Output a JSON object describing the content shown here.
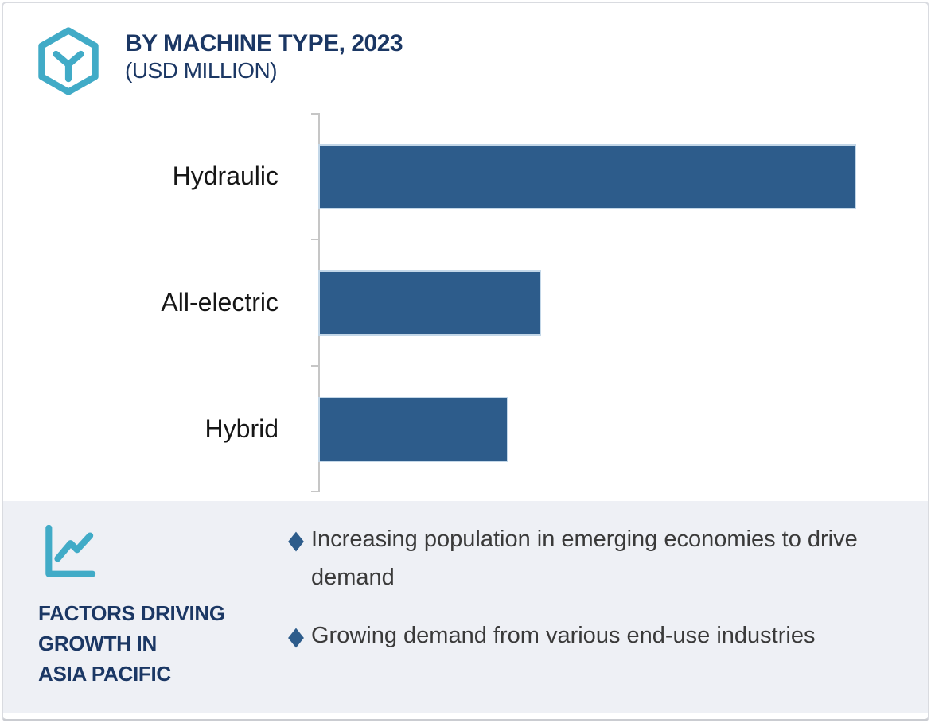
{
  "header": {
    "title": "BY MACHINE TYPE, 2023",
    "subtitle": "(USD MILLION)",
    "logo_icon": "hexagon-y-logo-icon"
  },
  "chart_data": {
    "type": "bar",
    "orientation": "horizontal",
    "title": "BY MACHINE TYPE, 2023 (USD MILLION)",
    "categories": [
      "Hydraulic",
      "All-electric",
      "Hybrid"
    ],
    "values_relative_pct_of_max": [
      100,
      41,
      35
    ],
    "value_axis_tick_labels": [],
    "data_labels_shown": false,
    "legend": "none",
    "grid": "off",
    "bar_color": "#2d5c8b",
    "axis_color": "#c6c6c6"
  },
  "factors_panel": {
    "icon": "trend-line-chart-icon",
    "heading_lines": [
      "FACTORS DRIVING",
      "GROWTH IN",
      "ASIA PACIFIC"
    ],
    "bullet_marker": "diamond",
    "bullet_marker_glyph": "◆",
    "bullets": [
      "Increasing population in emerging economies to drive demand",
      "Growing demand from various end-use industries"
    ]
  },
  "colors": {
    "navy": "#1b3764",
    "teal": "#41abc7",
    "bar_blue": "#2d5c8b",
    "panel_background": "#eef0f5",
    "card_border": "#d9dbe0",
    "body_text": "#3a3a3a"
  }
}
